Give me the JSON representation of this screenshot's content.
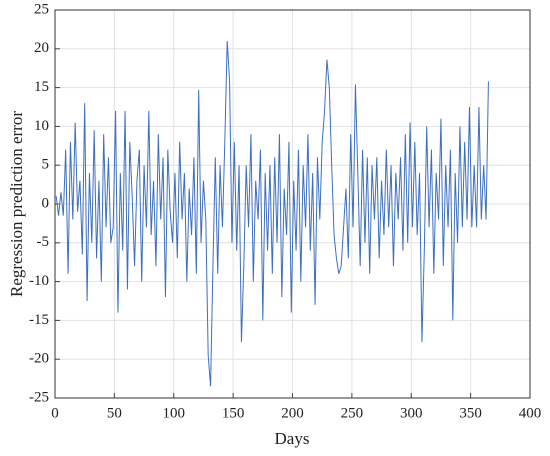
{
  "chart_data": {
    "type": "line",
    "xlabel": "Days",
    "ylabel": "Regression prediction error",
    "xlim": [
      0,
      400
    ],
    "ylim": [
      -25,
      25
    ],
    "xticks": [
      0,
      50,
      100,
      150,
      200,
      250,
      300,
      350,
      400
    ],
    "yticks": [
      -25,
      -20,
      -15,
      -10,
      -5,
      0,
      5,
      10,
      15,
      20,
      25
    ],
    "grid": true,
    "series": [
      {
        "color": "#3d6fc0",
        "x": [
          1,
          3,
          5,
          7,
          9,
          11,
          13,
          15,
          17,
          19,
          21,
          23,
          25,
          27,
          29,
          31,
          33,
          35,
          37,
          39,
          41,
          43,
          45,
          47,
          49,
          51,
          53,
          55,
          57,
          59,
          61,
          63,
          65,
          67,
          69,
          71,
          73,
          75,
          77,
          79,
          81,
          83,
          85,
          87,
          89,
          91,
          93,
          95,
          97,
          99,
          101,
          103,
          105,
          107,
          109,
          111,
          113,
          115,
          117,
          119,
          121,
          123,
          125,
          127,
          129,
          131,
          133,
          135,
          137,
          139,
          141,
          143,
          145,
          147,
          149,
          151,
          153,
          155,
          157,
          159,
          161,
          163,
          165,
          167,
          169,
          171,
          173,
          175,
          177,
          179,
          181,
          183,
          185,
          187,
          189,
          191,
          193,
          195,
          197,
          199,
          201,
          203,
          205,
          207,
          209,
          211,
          213,
          215,
          217,
          219,
          221,
          223,
          225,
          227,
          229,
          231,
          233,
          235,
          237,
          239,
          241,
          243,
          245,
          247,
          249,
          251,
          253,
          255,
          257,
          259,
          261,
          263,
          265,
          267,
          269,
          271,
          273,
          275,
          277,
          279,
          281,
          283,
          285,
          287,
          289,
          291,
          293,
          295,
          297,
          299,
          301,
          303,
          305,
          307,
          309,
          311,
          313,
          315,
          317,
          319,
          321,
          323,
          325,
          327,
          329,
          331,
          333,
          335,
          337,
          339,
          341,
          343,
          345,
          347,
          349,
          351,
          353,
          355,
          357,
          359,
          361,
          363,
          365
        ],
        "values": [
          1,
          -1.5,
          1.5,
          -1.5,
          7,
          -9,
          8,
          -2,
          10.5,
          -1,
          3,
          -6.5,
          13,
          -12.5,
          4,
          -5,
          9.5,
          -7,
          3,
          -10,
          9,
          -3,
          6,
          -5,
          -3,
          12,
          -14,
          4,
          -6,
          12,
          -11,
          8,
          1,
          -8,
          3,
          7,
          -10,
          5,
          -3,
          12,
          -4,
          3,
          -8,
          9,
          -2,
          6,
          -12,
          7,
          -1,
          -5,
          4,
          -7,
          8,
          -2,
          4,
          -10,
          2,
          -4,
          6,
          -9,
          14.7,
          -5,
          3,
          -2,
          -19.5,
          -23.5,
          -8,
          6,
          -9,
          5,
          -3,
          8,
          21,
          16,
          -5,
          8,
          -6,
          5,
          -17.8,
          -8,
          5,
          -3,
          9,
          -10,
          3,
          -2,
          7,
          -15,
          4,
          -6,
          5,
          -9,
          6,
          -5,
          9,
          -12,
          2,
          -4,
          8,
          -14,
          3,
          -6,
          7,
          -10,
          5,
          -3,
          9,
          -6,
          4,
          -13,
          6,
          -2,
          8,
          12,
          18.6,
          15,
          5,
          -4,
          -7,
          -9,
          -8,
          -3,
          2,
          -7,
          9,
          -3,
          15.4,
          4,
          -8,
          7,
          -5,
          6,
          -9,
          5,
          -2,
          6,
          -7,
          3,
          -4,
          7,
          -3,
          5,
          -8,
          4,
          -2,
          6,
          -6,
          9,
          -5,
          10.5,
          -3,
          8,
          -4,
          4,
          -17.8,
          -6,
          10,
          -3,
          7,
          -9,
          4,
          -2,
          11,
          -8,
          5,
          -3,
          7,
          -15,
          4,
          -5,
          10,
          -3,
          8,
          -2,
          12.5,
          -3,
          5,
          -3,
          12.5,
          -2,
          5,
          -2,
          15.8
        ]
      }
    ]
  }
}
